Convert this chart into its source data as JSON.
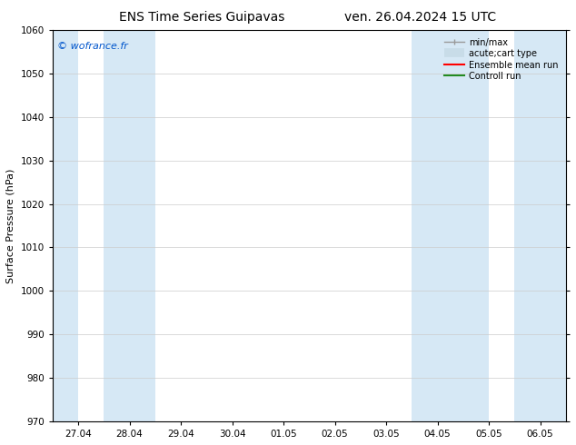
{
  "title_left": "ENS Time Series Guipavas",
  "title_right": "ven. 26.04.2024 15 UTC",
  "ylabel": "Surface Pressure (hPa)",
  "ylim": [
    970,
    1060
  ],
  "yticks": [
    970,
    980,
    990,
    1000,
    1010,
    1020,
    1030,
    1040,
    1050,
    1060
  ],
  "xlabels": [
    "27.04",
    "28.04",
    "29.04",
    "30.04",
    "01.05",
    "02.05",
    "03.05",
    "04.05",
    "05.05",
    "06.05"
  ],
  "x_positions": [
    0,
    1,
    2,
    3,
    4,
    5,
    6,
    7,
    8,
    9
  ],
  "xlim": [
    -0.5,
    9.5
  ],
  "shaded_bands": [
    {
      "xmin": -0.5,
      "xmax": 0.0
    },
    {
      "xmin": 0.5,
      "xmax": 1.5
    },
    {
      "xmin": 6.5,
      "xmax": 7.5
    },
    {
      "xmin": 7.5,
      "xmax": 8.0
    },
    {
      "xmin": 8.5,
      "xmax": 9.5
    }
  ],
  "band_color": "#d6e8f5",
  "background_color": "#ffffff",
  "copyright_text": "© wofrance.fr",
  "copyright_color": "#0055cc",
  "legend_items": [
    {
      "label": "min/max"
    },
    {
      "label": "acute;cart type"
    },
    {
      "label": "Ensemble mean run",
      "color": "#ff0000"
    },
    {
      "label": "Controll run",
      "color": "#228B22"
    }
  ],
  "minmax_color": "#999999",
  "carttype_color": "#c8dce8",
  "grid_color": "#cccccc",
  "axis_color": "#000000",
  "title_fontsize": 10,
  "label_fontsize": 8,
  "tick_fontsize": 7.5,
  "copyright_fontsize": 8
}
